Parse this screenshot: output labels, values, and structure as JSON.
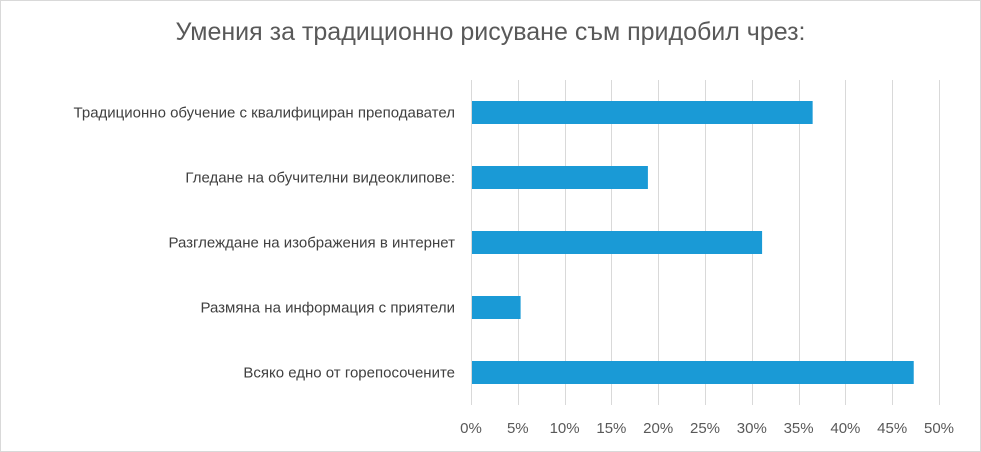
{
  "chart_data": {
    "type": "bar",
    "orientation": "horizontal",
    "title": "Умения за традиционно рисуване съм придобил чрез:",
    "categories": [
      "Традиционно обучение с квалифициран преподавател",
      "Гледане на обучителни видеоклипове:",
      "Разглеждане на изображения в интернет",
      "Размяна на информация с приятели",
      "Всяко едно от горепосочените"
    ],
    "values": [
      36.5,
      18.9,
      31.1,
      5.3,
      47.3
    ],
    "xlim": [
      0,
      50
    ],
    "xticks": [
      "0%",
      "5%",
      "10%",
      "15%",
      "20%",
      "25%",
      "30%",
      "35%",
      "40%",
      "45%",
      "50%"
    ],
    "grid": true,
    "bar_color": "#1a9ad6",
    "legend": "none"
  }
}
